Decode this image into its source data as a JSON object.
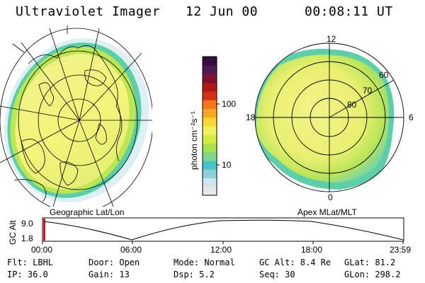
{
  "header": {
    "title": "Ultraviolet Imager",
    "date": "12 Jun 00",
    "time": "00:08:11 UT"
  },
  "panels": {
    "left_label": "Geographic Lat/Lon",
    "right_label": "Apex MLat/MLT",
    "polar_mlt_labels": [
      "12",
      "18",
      "6",
      "0"
    ],
    "polar_mlat_labels": [
      "60",
      "70",
      "80"
    ]
  },
  "colorbar": {
    "unit": "photon cm⁻²s⁻¹",
    "tick_labels": [
      "100",
      "10"
    ],
    "colors": [
      "#e8e8e8",
      "#d0e4ec",
      "#8ed0d8",
      "#46c4c8",
      "#7cd890",
      "#a8e050",
      "#d4ec40",
      "#f0f060",
      "#f8d830",
      "#f8a820",
      "#f07818",
      "#d83018",
      "#b01818",
      "#801030",
      "#501850",
      "#301040"
    ]
  },
  "gc_alt_plot": {
    "ylabel": "GC Alt",
    "ytick_labels": [
      "9.0",
      "1.8"
    ],
    "xtick_labels": [
      "00:00",
      "06:00",
      "12:00",
      "18:00",
      "23:59"
    ]
  },
  "info": {
    "flt": "Flt: LBHL",
    "ip": "IP: 36.0",
    "door": "Door: Open",
    "gain": "Gain: 13",
    "mode": "Mode: Normal",
    "dsp": "Dsp:    5.2",
    "gcalt": "GC Alt: 8.4 Re",
    "seq": "Seq: 30",
    "glat": "GLat:  81.2",
    "glon": "GLon: 298.2"
  }
}
